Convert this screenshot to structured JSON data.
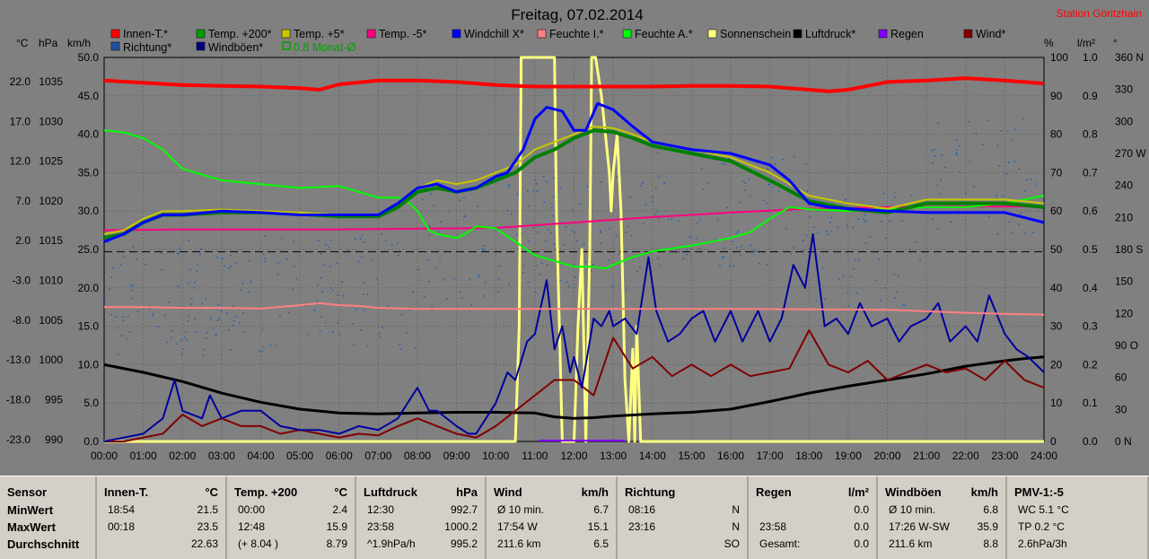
{
  "chart_data": {
    "type": "line",
    "title": "Freitag, 07.02.2014",
    "station": "Station Göritzhain",
    "axis_units": {
      "temp": "°C",
      "pressure": "hPa",
      "wind": "km/h",
      "humidity": "%",
      "rain": "l/m²",
      "direction": "°"
    },
    "x_ticks": [
      "00:00",
      "01:00",
      "02:00",
      "03:00",
      "04:00",
      "05:00",
      "06:00",
      "07:00",
      "08:00",
      "09:00",
      "10:00",
      "11:00",
      "12:00",
      "13:00",
      "14:00",
      "15:00",
      "16:00",
      "17:00",
      "18:00",
      "19:00",
      "20:00",
      "21:00",
      "22:00",
      "23:00",
      "24:00"
    ],
    "ylim_wind": [
      0,
      50
    ],
    "y_ticks_temp": [
      "22.0",
      "17.0",
      "12.0",
      "7.0",
      "2.0",
      "-3.0",
      "-8.0",
      "-13.0",
      "-18.0",
      "-23.0"
    ],
    "y_ticks_pressure": [
      "1035",
      "1030",
      "1025",
      "1020",
      "1015",
      "1010",
      "1005",
      "1000",
      "995",
      "990"
    ],
    "y_ticks_wind": [
      "50.0",
      "45.0",
      "40.0",
      "35.0",
      "30.0",
      "25.0",
      "20.0",
      "15.0",
      "10.0",
      "5.0",
      "0.0"
    ],
    "y_ticks_humidity": [
      "100",
      "90",
      "80",
      "70",
      "60",
      "50",
      "40",
      "30",
      "20",
      "10",
      "0"
    ],
    "y_ticks_rain": [
      "1.0",
      "0.9",
      "0.8",
      "0.7",
      "0.6",
      "0.5",
      "0.4",
      "0.3",
      "0.2",
      "0.1",
      "0.0"
    ],
    "y_ticks_dir": [
      "360 N",
      "330",
      "300",
      "270 W",
      "240",
      "210",
      "180 S",
      "150",
      "120",
      "90 O",
      "60",
      "30",
      "0 N"
    ],
    "legend": [
      {
        "label": "Innen-T.*",
        "color": "#ff0000"
      },
      {
        "label": "Temp. +200*",
        "color": "#00a000"
      },
      {
        "label": "Temp. +5*",
        "color": "#c8c800"
      },
      {
        "label": "Temp. -5*",
        "color": "#ff0080"
      },
      {
        "label": "Windchill X*",
        "color": "#0000ff"
      },
      {
        "label": "Feuchte I.*",
        "color": "#ff8080"
      },
      {
        "label": "Feuchte A.*",
        "color": "#00ff00"
      },
      {
        "label": "Sonnenschein",
        "color": "#ffff80"
      },
      {
        "label": "Luftdruck*",
        "color": "#000000"
      },
      {
        "label": "Regen",
        "color": "#8000ff"
      },
      {
        "label": "Wind*",
        "color": "#800000"
      },
      {
        "label": "Richtung*",
        "color": "#2050a0"
      },
      {
        "label": "Windböen*",
        "color": "#000080"
      },
      {
        "label": "0.8 Monat-Ø",
        "color": "#00a000"
      }
    ],
    "series": [
      {
        "name": "Innen-T.*",
        "color": "#ff0000",
        "width": 4,
        "axis": "wind",
        "x": [
          0,
          1,
          2,
          3,
          4,
          5,
          5.5,
          6,
          7,
          8,
          9,
          10,
          11,
          12,
          13,
          14,
          15,
          16,
          17,
          18,
          18.5,
          19,
          20,
          21,
          22,
          23,
          24
        ],
        "y": [
          47,
          46.7,
          46.4,
          46.3,
          46.2,
          46,
          45.8,
          46.5,
          47,
          47,
          46.8,
          46.4,
          46.2,
          46.2,
          46.2,
          46.2,
          46.3,
          46.3,
          46.2,
          45.8,
          45.6,
          45.8,
          46.8,
          47,
          47.3,
          47,
          46.6
        ]
      },
      {
        "name": "Temp. +200*",
        "color": "#008000",
        "width": 4,
        "axis": "wind",
        "x": [
          0,
          0.5,
          1,
          1.5,
          2,
          3,
          4,
          5,
          6,
          7,
          7.5,
          8,
          8.5,
          9,
          9.5,
          10,
          10.5,
          11,
          11.5,
          12,
          12.5,
          13,
          13.5,
          14,
          15,
          16,
          17,
          18,
          19,
          20,
          21,
          22,
          23,
          24
        ],
        "y": [
          26.5,
          27,
          28.5,
          29.5,
          29.5,
          29.8,
          29.8,
          29.6,
          29.3,
          29.3,
          30.5,
          32.5,
          33,
          32.5,
          33,
          34,
          35,
          37,
          38,
          39.5,
          40.5,
          40.3,
          39.5,
          38.5,
          37.5,
          36.5,
          34,
          31.3,
          30.3,
          29.8,
          31,
          31,
          31,
          30.5
        ]
      },
      {
        "name": "Temp. +5*",
        "color": "#c8c800",
        "width": 2,
        "axis": "wind",
        "x": [
          0,
          0.5,
          1,
          1.5,
          2,
          3,
          4,
          5,
          6,
          7,
          7.5,
          8,
          8.5,
          9,
          9.5,
          10,
          10.5,
          11,
          11.5,
          12,
          12.5,
          13,
          13.5,
          14,
          15,
          16,
          17,
          18,
          19,
          20,
          21,
          22,
          23,
          24
        ],
        "y": [
          27,
          27.5,
          29,
          30,
          30,
          30.2,
          30,
          29.8,
          29.5,
          29.5,
          31,
          33,
          34,
          33.5,
          34,
          35,
          36,
          38,
          39,
          40,
          41,
          40.8,
          40,
          39,
          38,
          37,
          35,
          32,
          31,
          30.3,
          31.5,
          31.5,
          31.5,
          31
        ]
      },
      {
        "name": "Temp. -5*",
        "color": "#ff0080",
        "width": 2,
        "axis": "wind",
        "x": [
          0,
          2,
          4,
          6,
          8,
          10,
          12,
          14,
          16,
          18,
          20,
          22,
          24
        ],
        "y": [
          27.5,
          27.6,
          27.6,
          27.6,
          27.7,
          27.8,
          28.5,
          29.2,
          29.8,
          30.3,
          30.5,
          30.6,
          30.6
        ]
      },
      {
        "name": "Windchill X*",
        "color": "#0000ff",
        "width": 3,
        "axis": "wind",
        "x": [
          0,
          0.5,
          1,
          1.5,
          2,
          3,
          4,
          5,
          6,
          7,
          7.5,
          8,
          8.5,
          9,
          9.5,
          10,
          10.3,
          10.7,
          11,
          11.3,
          11.7,
          12,
          12.3,
          12.6,
          13,
          13.5,
          14,
          15,
          16,
          17,
          17.5,
          18,
          18.5,
          19,
          20,
          21,
          22,
          23,
          24
        ],
        "y": [
          26,
          27,
          28.5,
          29.5,
          29.5,
          30,
          29.8,
          29.5,
          29.5,
          29.5,
          31,
          33,
          33.5,
          32.5,
          33,
          34.5,
          35,
          38,
          42,
          43.5,
          43,
          40.5,
          40.5,
          44,
          43.2,
          41,
          39,
          38,
          37.5,
          36,
          34,
          31,
          30.5,
          30.3,
          30,
          29.8,
          29.8,
          29.8,
          28.5
        ]
      },
      {
        "name": "Feuchte I.*",
        "color": "#ff8080",
        "width": 2,
        "axis": "humidity",
        "x": [
          0,
          1,
          2,
          3,
          4,
          5,
          5.5,
          6,
          6.5,
          7,
          8,
          9,
          10,
          12,
          14,
          16,
          18,
          20,
          22,
          24
        ],
        "y": [
          35,
          35,
          34.8,
          34.8,
          34.6,
          35.5,
          36,
          35.5,
          35.3,
          34.8,
          34.5,
          34.5,
          34.5,
          34.5,
          34.5,
          34.5,
          34.4,
          34.3,
          33.5,
          33
        ]
      },
      {
        "name": "Feuchte A.*",
        "color": "#00ff00",
        "width": 2,
        "axis": "humidity",
        "x": [
          0,
          0.5,
          1,
          1.5,
          1.8,
          2,
          3,
          4,
          5,
          6,
          7,
          7.5,
          7.8,
          8,
          8.3,
          8.5,
          9,
          9.3,
          9.5,
          10,
          10.5,
          11,
          11.5,
          12,
          12.5,
          12.8,
          13,
          13.5,
          14,
          15,
          16,
          16.5,
          17,
          17.5,
          18,
          19,
          20,
          21,
          22,
          23,
          24
        ],
        "y": [
          81,
          80.5,
          79,
          76,
          73,
          71,
          68,
          67,
          66,
          66.5,
          63.5,
          63.5,
          62,
          60,
          55,
          54,
          53,
          54.5,
          56,
          55.5,
          52,
          48.5,
          47,
          45.5,
          45.5,
          45,
          46,
          48,
          49.5,
          51,
          53,
          54.5,
          58,
          61,
          60.5,
          60,
          60.5,
          61,
          61,
          62,
          64
        ]
      },
      {
        "name": "Sonnenschein",
        "color": "#ffff80",
        "width": 3,
        "axis": "wind",
        "x": [
          0,
          10.5,
          10.6,
          10.65,
          11.5,
          11.55,
          11.7,
          11.8,
          12.0,
          12.1,
          12.2,
          12.3,
          12.4,
          12.45,
          12.55,
          12.7,
          12.8,
          12.9,
          12.95,
          13.0,
          13.1,
          13.2,
          13.3,
          13.4,
          13.5,
          13.55,
          13.6,
          13.7,
          13.75,
          13.8,
          24
        ],
        "y": [
          0,
          0,
          15,
          50,
          50,
          30,
          0,
          0,
          0,
          15,
          25,
          0,
          25,
          50,
          50,
          45,
          40,
          35,
          30,
          35,
          40,
          30,
          8,
          0,
          12,
          0,
          15,
          0,
          0,
          0,
          0
        ]
      },
      {
        "name": "Luftdruck*",
        "color": "#000000",
        "width": 3,
        "axis": "wind",
        "x": [
          0,
          1,
          2,
          3,
          4,
          5,
          6,
          7,
          8,
          9,
          10,
          11,
          11.5,
          12,
          12.5,
          13,
          14,
          15,
          16,
          17,
          18,
          19,
          20,
          21,
          22,
          23,
          23.5,
          24
        ],
        "y": [
          10,
          9,
          7.8,
          6.3,
          5.1,
          4.2,
          3.7,
          3.6,
          3.7,
          3.8,
          3.8,
          3.7,
          3.2,
          3,
          3.1,
          3.3,
          3.6,
          3.8,
          4.2,
          5.2,
          6.3,
          7.2,
          8,
          8.8,
          9.8,
          10.5,
          10.8,
          11
        ]
      },
      {
        "name": "Wind*",
        "color": "#800000",
        "width": 2,
        "axis": "wind",
        "x": [
          0,
          0.5,
          1,
          1.5,
          2,
          2.5,
          3,
          3.5,
          4,
          4.5,
          5,
          5.5,
          6,
          6.5,
          7,
          7.5,
          8,
          8.5,
          9,
          9.5,
          10,
          10.5,
          11,
          11.5,
          12,
          12.5,
          13,
          13.5,
          14,
          14.5,
          15,
          15.5,
          16,
          16.5,
          17,
          17.5,
          18,
          18.5,
          19,
          19.5,
          20,
          20.5,
          21,
          21.5,
          22,
          22.5,
          23,
          23.5,
          24
        ],
        "y": [
          0,
          0,
          0.5,
          1,
          3.5,
          2,
          3,
          2,
          2,
          1,
          1.5,
          1,
          0.5,
          1,
          0.8,
          2,
          3,
          2,
          1,
          0.5,
          2,
          4,
          6,
          8,
          8,
          6,
          13.5,
          9.5,
          11,
          8.5,
          10,
          8.5,
          10,
          8.5,
          9,
          9.5,
          14.5,
          10,
          9,
          10.5,
          8,
          9,
          10,
          9,
          9.5,
          8,
          10.5,
          8,
          7
        ]
      },
      {
        "name": "Windböen*",
        "color": "#0000a0",
        "width": 2,
        "axis": "wind",
        "x": [
          0,
          0.5,
          1,
          1.5,
          1.8,
          2,
          2.5,
          2.7,
          3,
          3.5,
          4,
          4.5,
          5,
          5.5,
          6,
          6.5,
          7,
          7.5,
          8,
          8.3,
          8.5,
          9,
          9.3,
          9.5,
          10,
          10.3,
          10.5,
          10.8,
          11,
          11.3,
          11.5,
          11.7,
          11.9,
          12,
          12.2,
          12.5,
          12.7,
          12.9,
          13,
          13.3,
          13.6,
          13.9,
          14.1,
          14.4,
          14.7,
          15,
          15.3,
          15.6,
          16,
          16.3,
          16.7,
          17,
          17.3,
          17.6,
          17.9,
          18.1,
          18.4,
          18.7,
          19,
          19.3,
          19.6,
          20,
          20.3,
          20.6,
          21,
          21.3,
          21.6,
          22,
          22.3,
          22.6,
          23,
          23.3,
          23.6,
          24
        ],
        "y": [
          0,
          0.5,
          1,
          3,
          8,
          4,
          3,
          6,
          3,
          4,
          4,
          2,
          1.5,
          1.5,
          1,
          2,
          1.5,
          3,
          7,
          4,
          4,
          2,
          1,
          1,
          5,
          9,
          8,
          13,
          14,
          21,
          12,
          15,
          9,
          11,
          7,
          16,
          15,
          17,
          15,
          16,
          14,
          24,
          17,
          13,
          14,
          16,
          17,
          13,
          17,
          13,
          17,
          13,
          16,
          23,
          20,
          27,
          15,
          16,
          14,
          18,
          15,
          16,
          13,
          15,
          16,
          18,
          13,
          15,
          13,
          19,
          14,
          12,
          11,
          9
        ]
      }
    ],
    "direction_points_note": "Richtung* scatter (0-360°)",
    "stats_columns": [
      {
        "title": "Sensor",
        "unit": "",
        "rows": [
          [
            "MinWert",
            ""
          ],
          [
            "MaxWert",
            ""
          ],
          [
            "Durchschnitt",
            ""
          ]
        ]
      },
      {
        "title": "Innen-T.",
        "unit": "°C",
        "rows": [
          [
            "18:54",
            "21.5"
          ],
          [
            "00:18",
            "23.5"
          ],
          [
            "",
            "22.63"
          ]
        ]
      },
      {
        "title": "Temp. +200",
        "unit": "°C",
        "rows": [
          [
            "00:00",
            "2.4"
          ],
          [
            "12:48",
            "15.9"
          ],
          [
            "(+ 8.04 )",
            "8.79"
          ]
        ]
      },
      {
        "title": "Luftdruck",
        "unit": "hPa",
        "rows": [
          [
            "12:30",
            "992.7"
          ],
          [
            "23:58",
            "1000.2"
          ],
          [
            "^1.9hPa/h",
            "995.2"
          ]
        ]
      },
      {
        "title": "Wind",
        "unit": "km/h",
        "rows": [
          [
            "Ø 10 min.",
            "6.7"
          ],
          [
            "17:54 W",
            "15.1"
          ],
          [
            "211.6 km",
            "6.5"
          ]
        ]
      },
      {
        "title": "Richtung",
        "unit": "",
        "rows": [
          [
            "08:16",
            "N"
          ],
          [
            "23:16",
            "N"
          ],
          [
            "",
            "SO"
          ]
        ]
      },
      {
        "title": "Regen",
        "unit": "l/m²",
        "rows": [
          [
            "",
            "0.0"
          ],
          [
            "23:58",
            "0.0"
          ],
          [
            "Gesamt:",
            "0.0"
          ]
        ]
      },
      {
        "title": "Windböen",
        "unit": "km/h",
        "rows": [
          [
            "Ø 10 min.",
            "6.8"
          ],
          [
            "17:26 W-SW",
            "35.9"
          ],
          [
            "211.6 km",
            "8.8"
          ]
        ]
      },
      {
        "title": "PMV-1:-5",
        "unit": "",
        "rows": [
          [
            "WC 5.1 °C",
            ""
          ],
          [
            "TP 0.2 °C",
            ""
          ],
          [
            "2.6hPa/3h",
            ""
          ]
        ]
      }
    ]
  },
  "bind_title": "Freitag, 07.02.2014",
  "bind_station": "Station Göritzhain"
}
